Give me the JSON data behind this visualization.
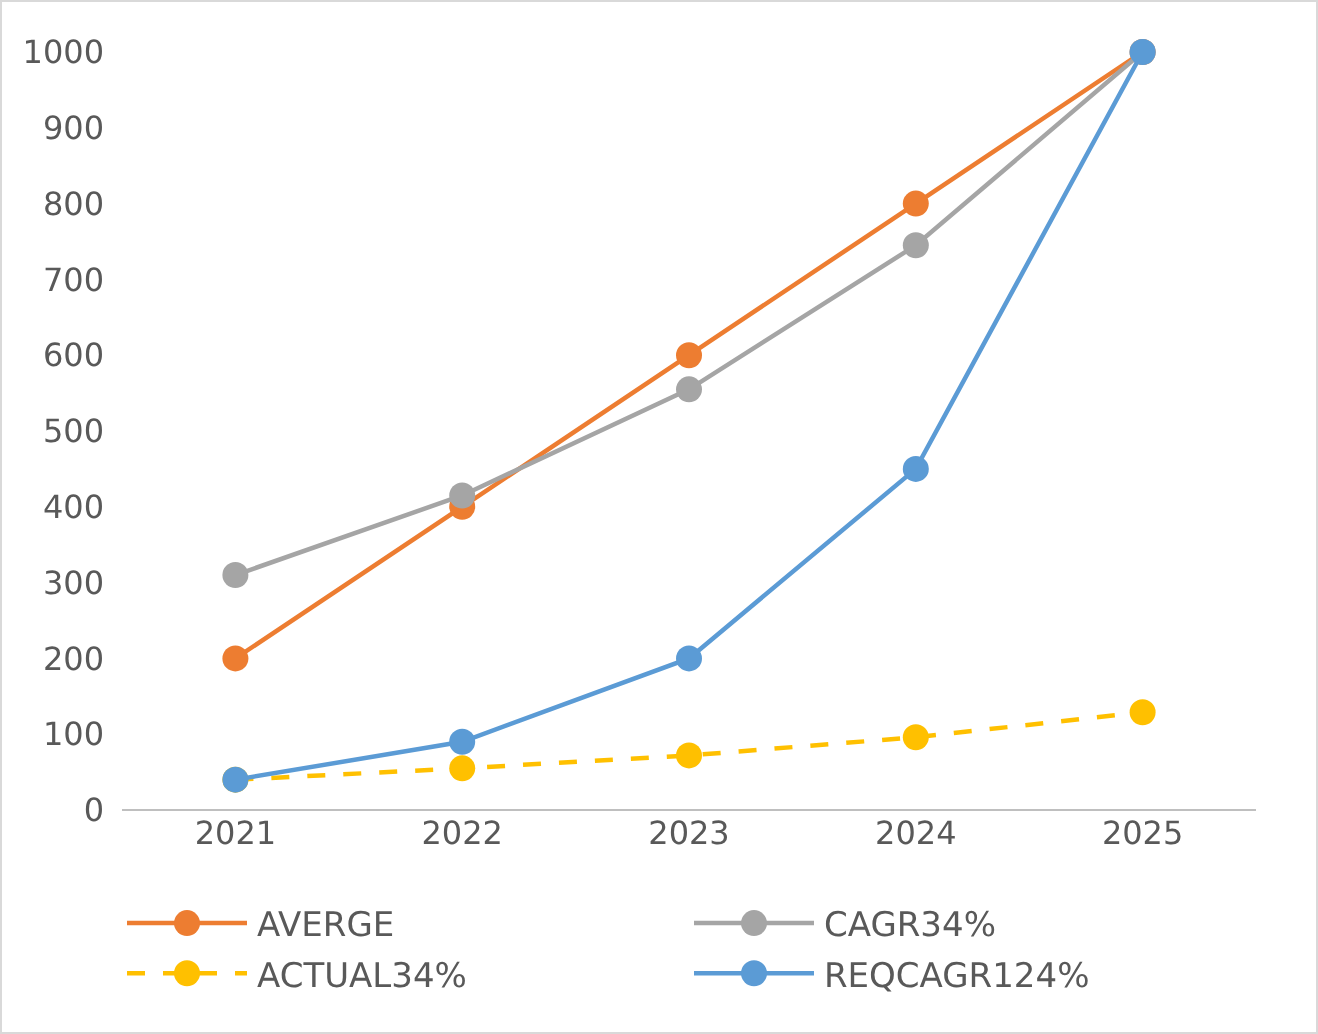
{
  "chart_data": {
    "type": "line",
    "categories": [
      "2021",
      "2022",
      "2023",
      "2024",
      "2025"
    ],
    "series": [
      {
        "name": "AVERGE",
        "color": "#ed7d31",
        "values": [
          200,
          400,
          600,
          800,
          1000
        ],
        "line_style": "solid"
      },
      {
        "name": "CAGR34%",
        "color": "#a5a5a5",
        "values": [
          310,
          415,
          555,
          745,
          1000
        ],
        "line_style": "solid"
      },
      {
        "name": "ACTUAL34%",
        "color": "#ffc000",
        "values": [
          40,
          55,
          72,
          96,
          129
        ],
        "line_style": "dashed"
      },
      {
        "name": "REQCAGR124%",
        "color": "#5b9bd5",
        "values": [
          40,
          90,
          200,
          450,
          1000
        ],
        "line_style": "solid"
      }
    ],
    "ylim": [
      0,
      1000
    ],
    "yticks": [
      0,
      100,
      200,
      300,
      400,
      500,
      600,
      700,
      800,
      900,
      1000
    ],
    "grid": false,
    "legend": "bottom",
    "marker": "circle"
  }
}
